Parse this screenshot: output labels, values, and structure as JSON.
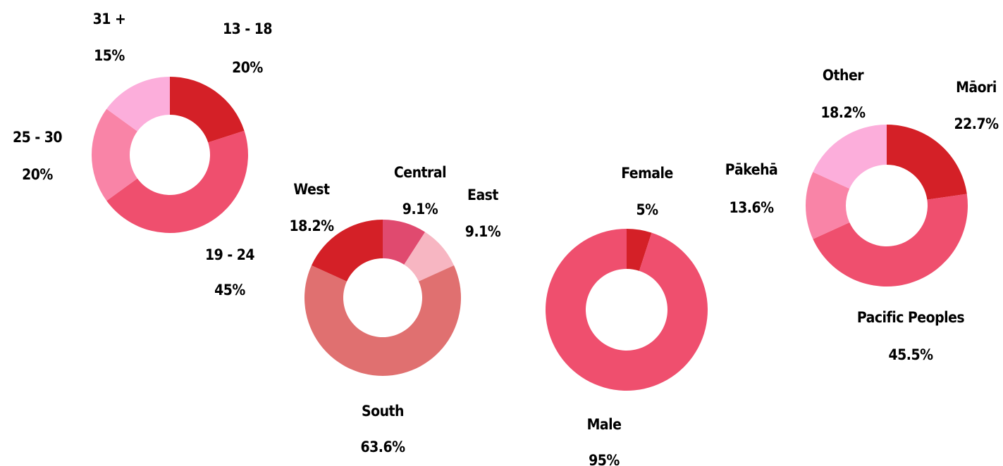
{
  "chart_data": [
    {
      "type": "pie",
      "categories": [
        "13 - 18",
        "19 - 24",
        "25 - 30",
        "31 +"
      ],
      "values": [
        20,
        45,
        20,
        15
      ],
      "value_labels": [
        "20%",
        "45%",
        "20%",
        "15%"
      ],
      "colors": [
        "#d42027",
        "#ef4f6e",
        "#f984a7",
        "#fcaedb"
      ]
    },
    {
      "type": "pie",
      "categories": [
        "Central",
        "East",
        "South",
        "West"
      ],
      "values": [
        9.1,
        9.1,
        63.6,
        18.2
      ],
      "value_labels": [
        "9.1%",
        "9.1%",
        "63.6%",
        "18.2%"
      ],
      "colors": [
        "#e04a6f",
        "#f7b6c2",
        "#e07070",
        "#d42027"
      ]
    },
    {
      "type": "pie",
      "categories": [
        "Female",
        "Male"
      ],
      "values": [
        5,
        95
      ],
      "value_labels": [
        "5%",
        "95%"
      ],
      "colors": [
        "#d42027",
        "#ef4f6e"
      ]
    },
    {
      "type": "pie",
      "categories": [
        "Māori",
        "Pacific Peoples",
        "Pākehā",
        "Other"
      ],
      "values": [
        22.7,
        45.5,
        13.6,
        18.2
      ],
      "value_labels": [
        "22.7%",
        "45.5%",
        "13.6%",
        "18.2%"
      ],
      "colors": [
        "#d42027",
        "#ef4f6e",
        "#f984a7",
        "#fcaedb"
      ]
    }
  ]
}
